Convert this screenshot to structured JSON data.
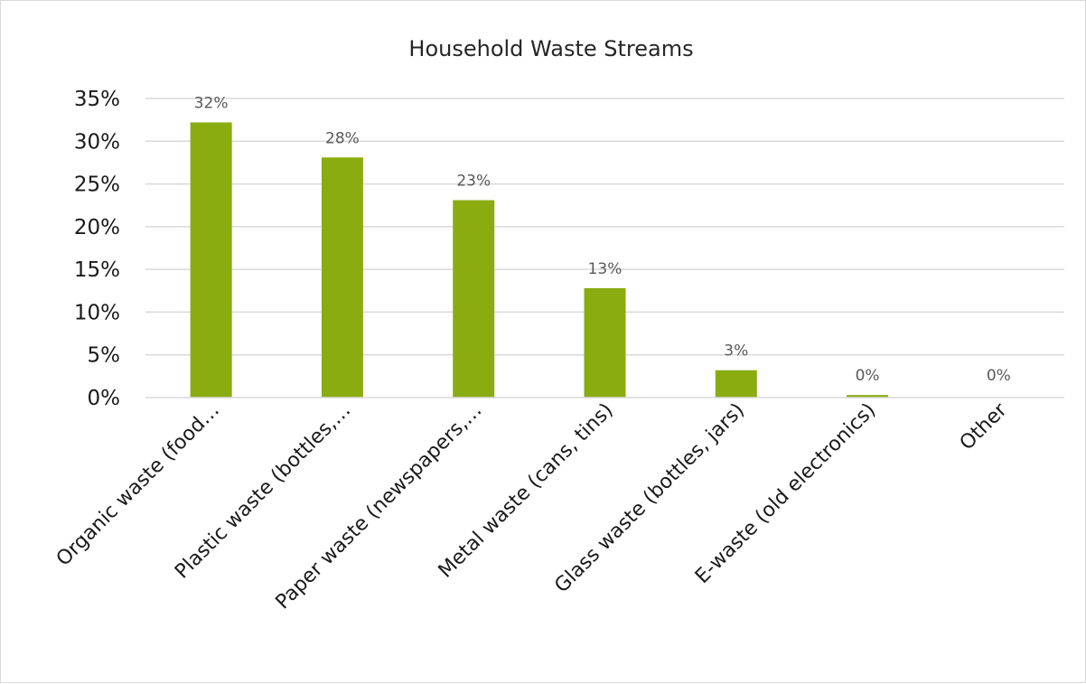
{
  "chart_data": {
    "type": "bar",
    "title": "Household Waste Streams",
    "xlabel": "",
    "ylabel": "",
    "categories": [
      "Organic waste (food…",
      "Plastic waste (bottles,…",
      "Paper waste (newspapers,…",
      "Metal waste (cans, tins)",
      "Glass waste (bottles, jars)",
      "E-waste (old electronics)",
      "Other"
    ],
    "values": [
      32.2,
      28.1,
      23.1,
      12.8,
      3.2,
      0.3,
      0
    ],
    "data_labels": [
      "32%",
      "28%",
      "23%",
      "13%",
      "3%",
      "0%",
      "0%"
    ],
    "y_ticks": [
      "0%",
      "5%",
      "10%",
      "15%",
      "20%",
      "25%",
      "30%",
      "35%"
    ],
    "y_tick_values": [
      0,
      5,
      10,
      15,
      20,
      25,
      30,
      35
    ],
    "ylim": [
      0,
      35
    ],
    "grid": true,
    "legend": "none",
    "bar_color": "#8aac10"
  }
}
